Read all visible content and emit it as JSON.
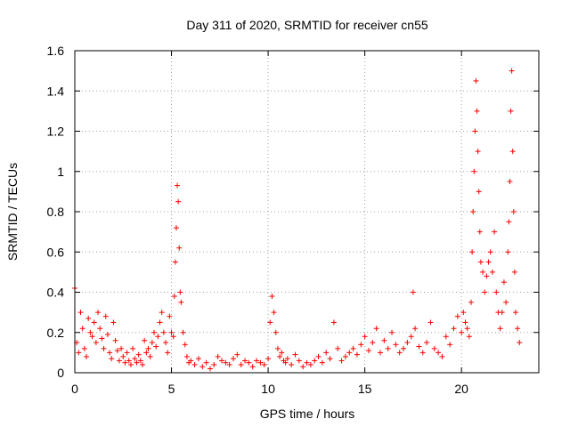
{
  "chart_data": {
    "type": "scatter",
    "title": "Day 311 of 2020, SRMTID for receiver cn55",
    "xlabel": "GPS time / hours",
    "ylabel": "SRMTID / TECUs",
    "xlim": [
      0,
      24
    ],
    "ylim": [
      0,
      1.6
    ],
    "xticks": [
      0,
      5,
      10,
      15,
      20
    ],
    "xtick_labels": [
      "0",
      "5",
      "10",
      "15",
      "20"
    ],
    "yticks": [
      0,
      0.2,
      0.4,
      0.6,
      0.8,
      1,
      1.2,
      1.4,
      1.6
    ],
    "ytick_labels": [
      "0",
      "0.2",
      "0.4",
      "0.6",
      "0.8",
      "1",
      "1.2",
      "1.4",
      "1.6"
    ],
    "grid": true,
    "marker": "plus",
    "color": "#ff0000",
    "series": [
      {
        "name": "SRMTID",
        "x": [
          0.0,
          0.1,
          0.2,
          0.3,
          0.4,
          0.5,
          0.6,
          0.7,
          0.8,
          0.9,
          1.0,
          1.1,
          1.2,
          1.3,
          1.4,
          1.5,
          1.6,
          1.7,
          1.8,
          1.9,
          2.0,
          2.1,
          2.2,
          2.3,
          2.4,
          2.5,
          2.6,
          2.7,
          2.8,
          2.9,
          3.0,
          3.1,
          3.2,
          3.3,
          3.4,
          3.5,
          3.6,
          3.7,
          3.8,
          3.9,
          4.0,
          4.1,
          4.2,
          4.3,
          4.4,
          4.5,
          4.6,
          4.7,
          4.8,
          4.9,
          5.0,
          5.1,
          5.15,
          5.2,
          5.25,
          5.3,
          5.35,
          5.4,
          5.45,
          5.5,
          5.6,
          5.7,
          5.8,
          5.9,
          6.0,
          6.2,
          6.4,
          6.6,
          6.8,
          7.0,
          7.2,
          7.4,
          7.6,
          7.8,
          8.0,
          8.2,
          8.4,
          8.6,
          8.8,
          9.0,
          9.2,
          9.4,
          9.6,
          9.8,
          10.0,
          10.1,
          10.2,
          10.3,
          10.4,
          10.5,
          10.6,
          10.7,
          10.8,
          10.9,
          11.0,
          11.2,
          11.4,
          11.6,
          11.8,
          12.0,
          12.2,
          12.4,
          12.6,
          12.8,
          13.0,
          13.2,
          13.4,
          13.6,
          13.8,
          14.0,
          14.2,
          14.4,
          14.6,
          14.8,
          15.0,
          15.2,
          15.4,
          15.6,
          15.8,
          16.0,
          16.2,
          16.4,
          16.6,
          16.8,
          17.0,
          17.2,
          17.4,
          17.5,
          17.6,
          17.8,
          18.0,
          18.2,
          18.4,
          18.6,
          18.8,
          19.0,
          19.2,
          19.4,
          19.6,
          19.8,
          20.0,
          20.1,
          20.2,
          20.3,
          20.4,
          20.5,
          20.55,
          20.6,
          20.65,
          20.7,
          20.75,
          20.8,
          20.85,
          20.9,
          20.95,
          21.0,
          21.1,
          21.2,
          21.3,
          21.4,
          21.5,
          21.6,
          21.7,
          21.8,
          21.9,
          22.0,
          22.1,
          22.2,
          22.3,
          22.4,
          22.45,
          22.5,
          22.55,
          22.6,
          22.65,
          22.7,
          22.75,
          22.8,
          22.9,
          23.0
        ],
        "y": [
          0.42,
          0.15,
          0.1,
          0.3,
          0.22,
          0.12,
          0.08,
          0.27,
          0.2,
          0.18,
          0.25,
          0.15,
          0.3,
          0.22,
          0.17,
          0.12,
          0.28,
          0.19,
          0.1,
          0.07,
          0.25,
          0.16,
          0.11,
          0.06,
          0.12,
          0.08,
          0.05,
          0.1,
          0.06,
          0.04,
          0.12,
          0.07,
          0.05,
          0.09,
          0.06,
          0.04,
          0.16,
          0.1,
          0.12,
          0.08,
          0.15,
          0.2,
          0.13,
          0.18,
          0.25,
          0.3,
          0.2,
          0.15,
          0.1,
          0.28,
          0.2,
          0.18,
          0.38,
          0.55,
          0.72,
          0.93,
          0.85,
          0.62,
          0.4,
          0.35,
          0.2,
          0.14,
          0.08,
          0.05,
          0.06,
          0.04,
          0.07,
          0.03,
          0.05,
          0.02,
          0.04,
          0.08,
          0.06,
          0.05,
          0.04,
          0.07,
          0.09,
          0.04,
          0.06,
          0.05,
          0.03,
          0.06,
          0.05,
          0.04,
          0.07,
          0.25,
          0.38,
          0.3,
          0.2,
          0.12,
          0.08,
          0.1,
          0.06,
          0.05,
          0.07,
          0.04,
          0.09,
          0.06,
          0.03,
          0.05,
          0.04,
          0.06,
          0.08,
          0.05,
          0.1,
          0.07,
          0.25,
          0.12,
          0.06,
          0.08,
          0.1,
          0.12,
          0.09,
          0.14,
          0.18,
          0.11,
          0.15,
          0.22,
          0.1,
          0.16,
          0.12,
          0.2,
          0.14,
          0.1,
          0.12,
          0.15,
          0.18,
          0.4,
          0.22,
          0.13,
          0.1,
          0.15,
          0.25,
          0.12,
          0.1,
          0.08,
          0.18,
          0.14,
          0.22,
          0.28,
          0.2,
          0.3,
          0.25,
          0.22,
          0.18,
          0.35,
          0.6,
          0.8,
          1.0,
          1.2,
          1.45,
          1.3,
          1.1,
          0.9,
          0.7,
          0.55,
          0.5,
          0.4,
          0.48,
          0.55,
          0.6,
          0.5,
          0.7,
          0.4,
          0.3,
          0.22,
          0.3,
          0.45,
          0.35,
          0.6,
          0.75,
          0.95,
          1.3,
          1.5,
          1.1,
          0.8,
          0.5,
          0.3,
          0.22,
          0.15
        ]
      }
    ]
  }
}
